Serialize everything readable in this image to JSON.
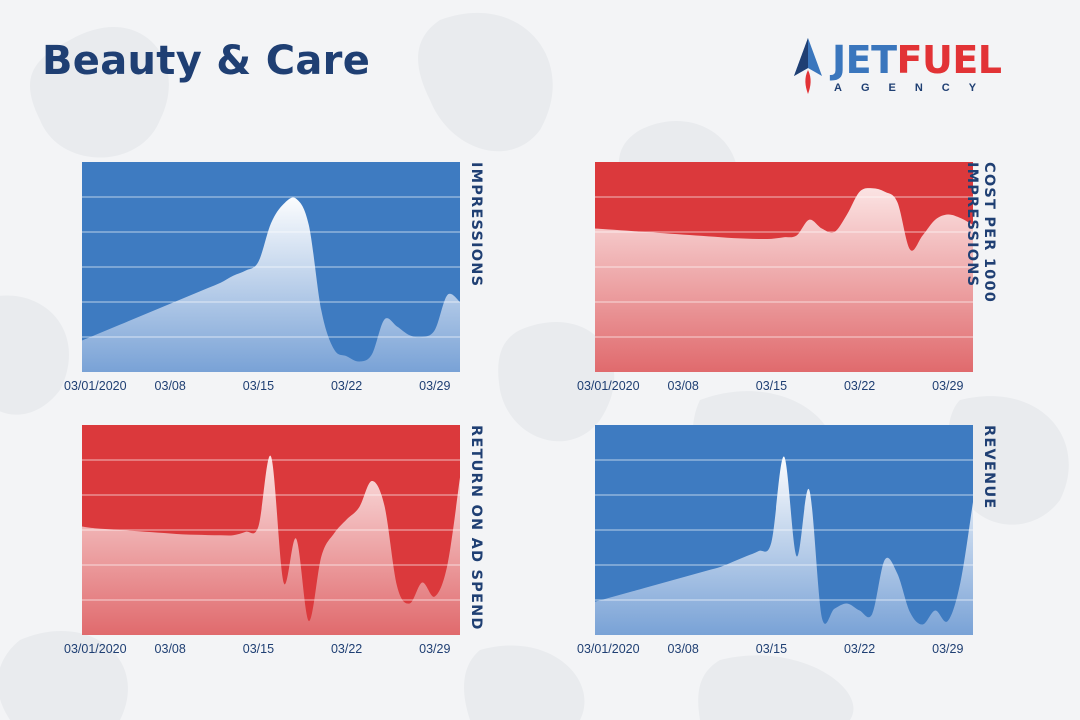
{
  "page": {
    "title": "Beauty & Care"
  },
  "logo": {
    "jet": "JET",
    "fuel": "FUEL",
    "agency": "AGENCY"
  },
  "colors": {
    "blue": "#3e7bc1",
    "red": "#db393c",
    "navy": "#1f3f73"
  },
  "chart_data": [
    {
      "type": "area",
      "title": "",
      "ylabel": "IMPRESSIONS",
      "theme": "blue",
      "x_ticks": [
        "03/01/2020",
        "03/08",
        "03/15",
        "03/22",
        "03/29"
      ],
      "x": [
        1,
        2,
        3,
        4,
        5,
        6,
        7,
        8,
        9,
        10,
        11,
        12,
        13,
        14,
        15,
        16,
        17,
        18,
        19,
        20,
        21,
        22,
        23,
        24,
        25,
        26,
        27,
        28,
        29,
        30,
        31
      ],
      "values": [
        18,
        21,
        24,
        27,
        30,
        33,
        36,
        39,
        42,
        45,
        48,
        51,
        55,
        58,
        63,
        85,
        96,
        99,
        84,
        35,
        13,
        9,
        6,
        10,
        30,
        26,
        21,
        20,
        24,
        44,
        40
      ],
      "ylim": [
        0,
        120
      ],
      "grid": true
    },
    {
      "type": "area",
      "title": "",
      "ylabel": "COST PER 1000 IMPRESSIONS",
      "theme": "red",
      "x_ticks": [
        "03/01/2020",
        "03/08",
        "03/15",
        "03/22",
        "03/29"
      ],
      "x": [
        1,
        2,
        3,
        4,
        5,
        6,
        7,
        8,
        9,
        10,
        11,
        12,
        13,
        14,
        15,
        16,
        17,
        18,
        19,
        20,
        21,
        22,
        23,
        24,
        25,
        26,
        27,
        28,
        29,
        30,
        31
      ],
      "values": [
        82,
        81.5,
        81,
        80.5,
        80,
        79.5,
        79,
        78.5,
        78,
        77.5,
        77,
        76.5,
        76.2,
        76,
        76.1,
        77,
        78,
        87,
        82,
        80,
        90,
        103,
        105,
        103,
        97,
        70,
        78,
        87,
        90,
        88,
        84
      ],
      "ylim": [
        0,
        120
      ],
      "grid": true
    },
    {
      "type": "area",
      "title": "",
      "ylabel": "RETURN ON AD SPEND",
      "theme": "red",
      "x_ticks": [
        "03/01/2020",
        "03/08",
        "03/15",
        "03/22",
        "03/29"
      ],
      "x": [
        1,
        2,
        3,
        4,
        5,
        6,
        7,
        8,
        9,
        10,
        11,
        12,
        13,
        14,
        15,
        16,
        17,
        18,
        19,
        20,
        21,
        22,
        23,
        24,
        25,
        26,
        27,
        28,
        29,
        30,
        31
      ],
      "values": [
        62,
        61,
        60.5,
        60,
        59.5,
        59,
        58.5,
        58,
        57.5,
        57.3,
        57.1,
        57,
        57,
        59,
        62,
        102,
        30,
        55,
        8,
        45,
        58,
        66,
        73,
        88,
        74,
        28,
        18,
        30,
        22,
        40,
        90
      ],
      "ylim": [
        0,
        120
      ],
      "grid": true
    },
    {
      "type": "area",
      "title": "",
      "ylabel": "REVENUE",
      "theme": "blue",
      "x_ticks": [
        "03/01/2020",
        "03/08",
        "03/15",
        "03/22",
        "03/29"
      ],
      "x": [
        1,
        2,
        3,
        4,
        5,
        6,
        7,
        8,
        9,
        10,
        11,
        12,
        13,
        14,
        15,
        16,
        17,
        18,
        19,
        20,
        21,
        22,
        23,
        24,
        25,
        26,
        27,
        28,
        29,
        30,
        31
      ],
      "values": [
        19,
        21,
        23,
        25,
        27,
        29,
        31,
        33,
        35,
        37,
        39,
        42,
        45,
        48,
        53,
        102,
        45,
        83,
        10,
        15,
        18,
        14,
        12,
        43,
        35,
        13,
        6,
        14,
        8,
        30,
        76
      ],
      "ylim": [
        0,
        120
      ],
      "grid": true
    }
  ]
}
